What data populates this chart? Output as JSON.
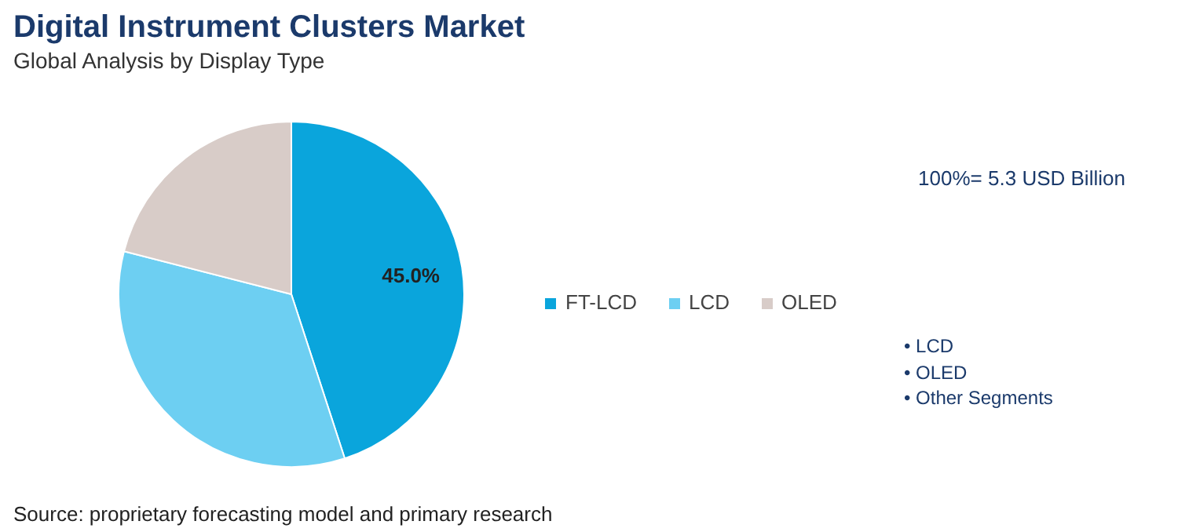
{
  "chart_data": {
    "type": "pie",
    "title": "Digital Instrument Clusters Market",
    "subtitle": "Global Analysis by Display Type",
    "categories": [
      "FT-LCD",
      "LCD",
      "OLED"
    ],
    "values": [
      45.0,
      34.0,
      21.0
    ],
    "colors": [
      "#0aa5dc",
      "#6dcff2",
      "#d8ccc8"
    ],
    "value_labels": [
      "45.0%",
      null,
      null
    ],
    "legend": "right",
    "annotations": [
      "100%= 5.3 USD Billion",
      "• LCD",
      "• OLED",
      "• Other Segments",
      "Source: proprietary forecasting model and primary research"
    ]
  }
}
